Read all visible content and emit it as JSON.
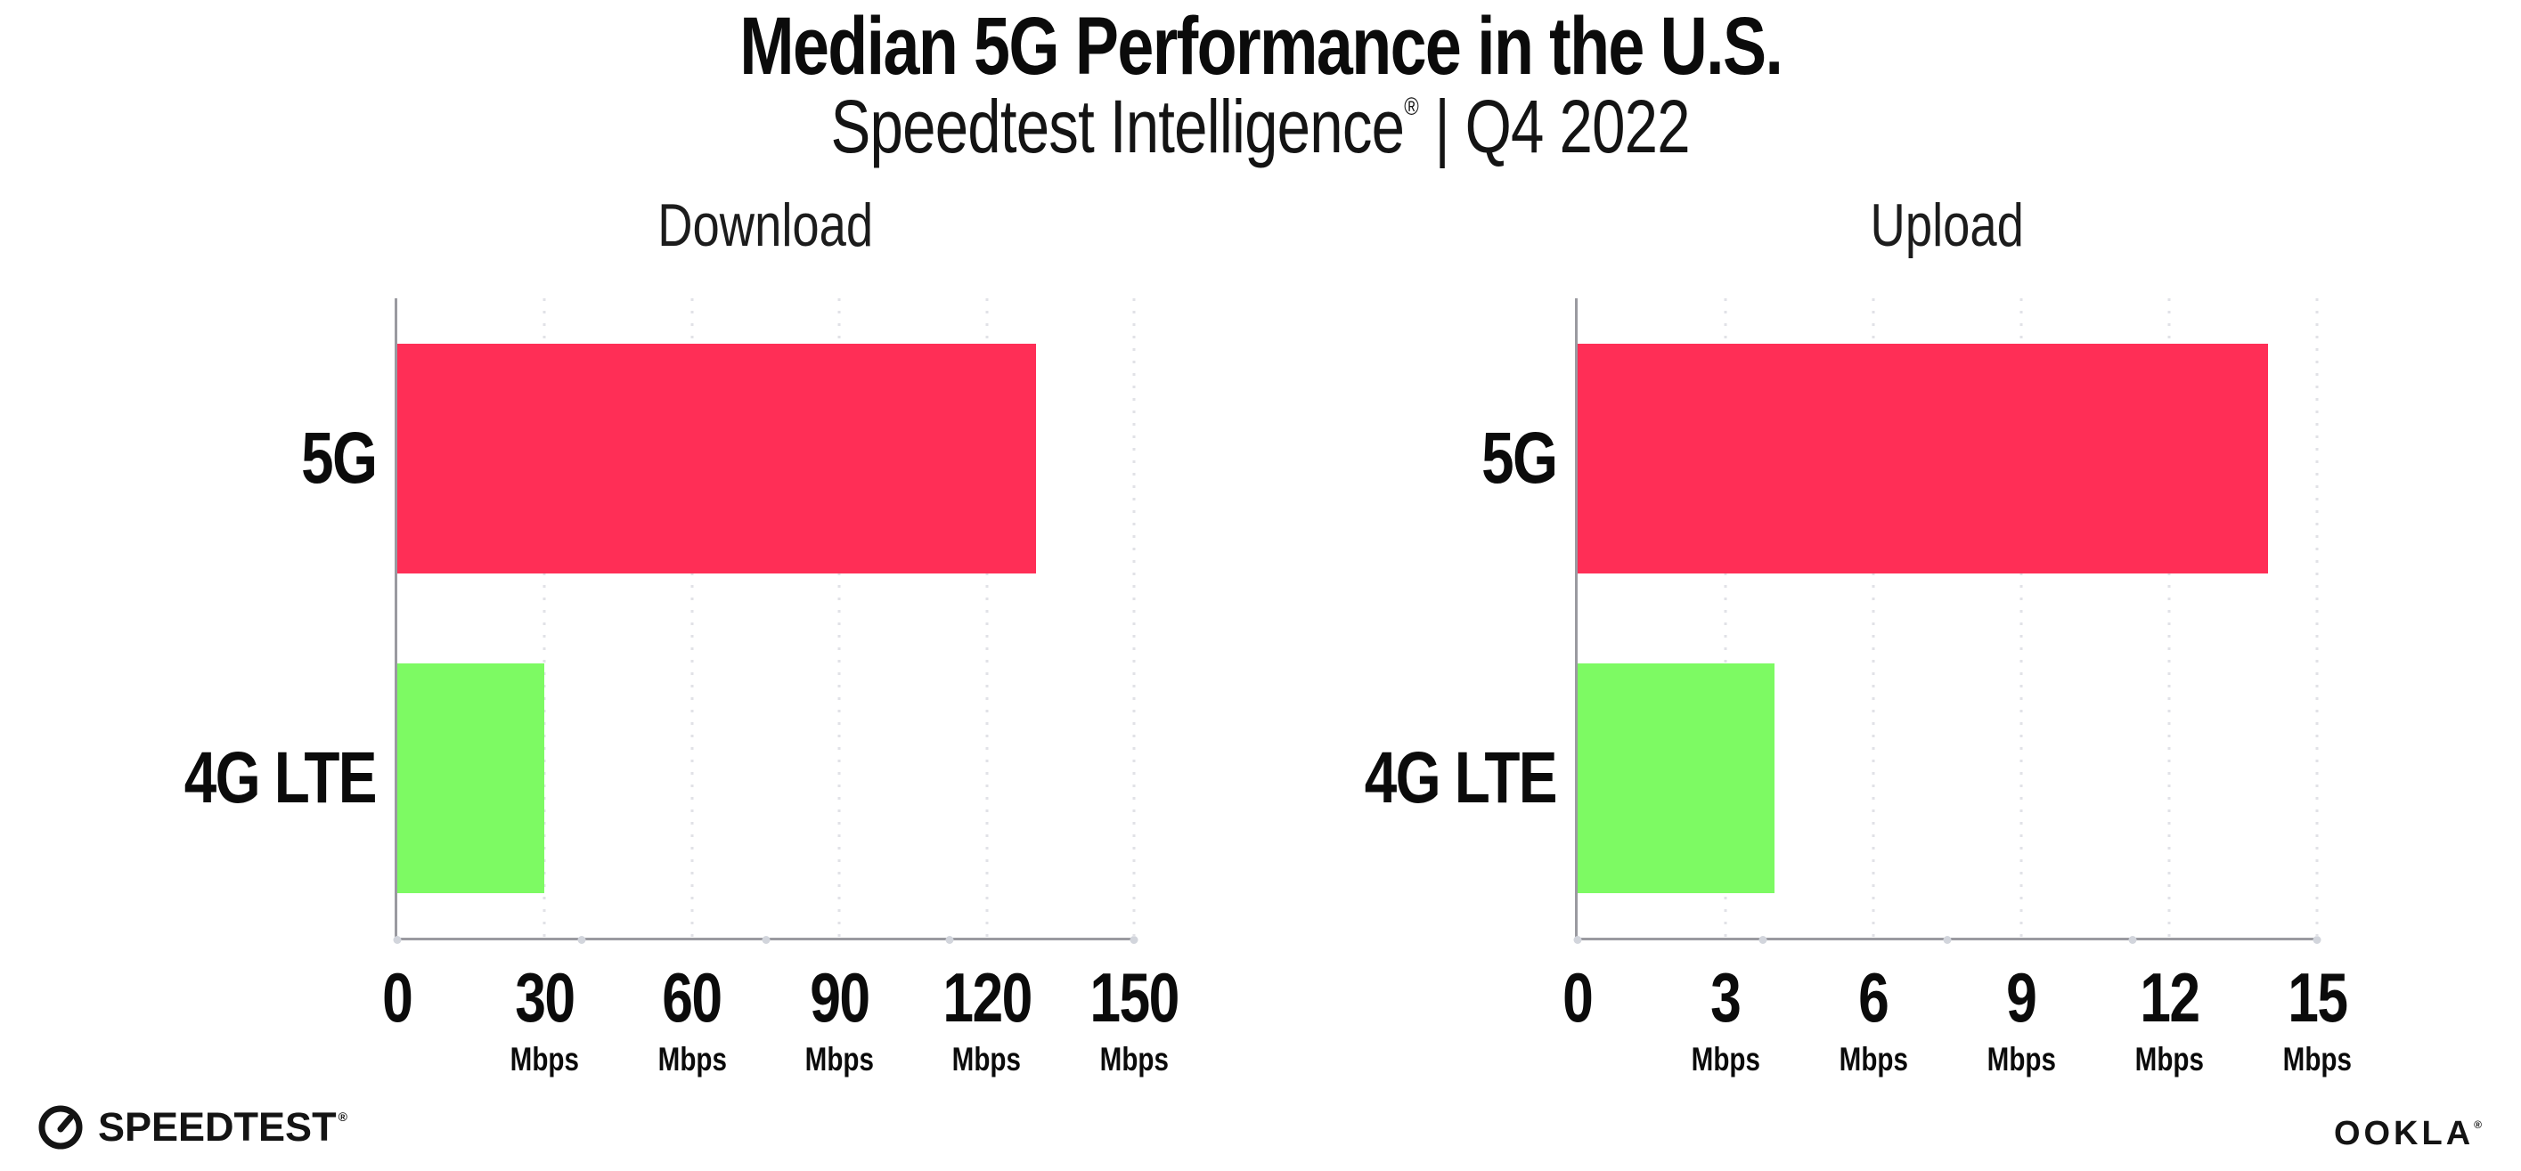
{
  "header": {
    "title": "Median 5G Performance in the U.S.",
    "subtitle_product": "Speedtest Intelligence",
    "subtitle_reg": "®",
    "subtitle_separator": "|",
    "subtitle_period": "Q4 2022"
  },
  "footer": {
    "speedtest_logo_text": "SPEEDTEST",
    "speedtest_logo_mark": "®",
    "speedtest_icon": "gauge-icon",
    "ookla_logo_text": "OOKLA",
    "ookla_logo_mark": "®"
  },
  "colors": {
    "bar_5g": "#ff2e56",
    "bar_4g_lte": "#7dfa63",
    "axis": "#9a9aa0",
    "gridline": "#e1e2e7",
    "axis_dot": "#d2d5dc",
    "text": "#0b0b0b"
  },
  "chart_data": [
    {
      "type": "bar",
      "orientation": "horizontal",
      "title": "Download",
      "categories": [
        "5G",
        "4G LTE"
      ],
      "values": [
        130,
        30
      ],
      "unit": "Mbps",
      "xlim": [
        0,
        150
      ],
      "xticks": [
        0,
        30,
        60,
        90,
        120,
        150
      ],
      "tick_unit_label": "Mbps",
      "bar_colors": [
        "#ff2e56",
        "#7dfa63"
      ],
      "grid": "vertical-dotted",
      "legend": "none"
    },
    {
      "type": "bar",
      "orientation": "horizontal",
      "title": "Upload",
      "categories": [
        "5G",
        "4G LTE"
      ],
      "values": [
        14,
        4
      ],
      "unit": "Mbps",
      "xlim": [
        0,
        15
      ],
      "xticks": [
        0,
        3,
        6,
        9,
        12,
        15
      ],
      "tick_unit_label": "Mbps",
      "bar_colors": [
        "#ff2e56",
        "#7dfa63"
      ],
      "grid": "vertical-dotted",
      "legend": "none"
    }
  ]
}
